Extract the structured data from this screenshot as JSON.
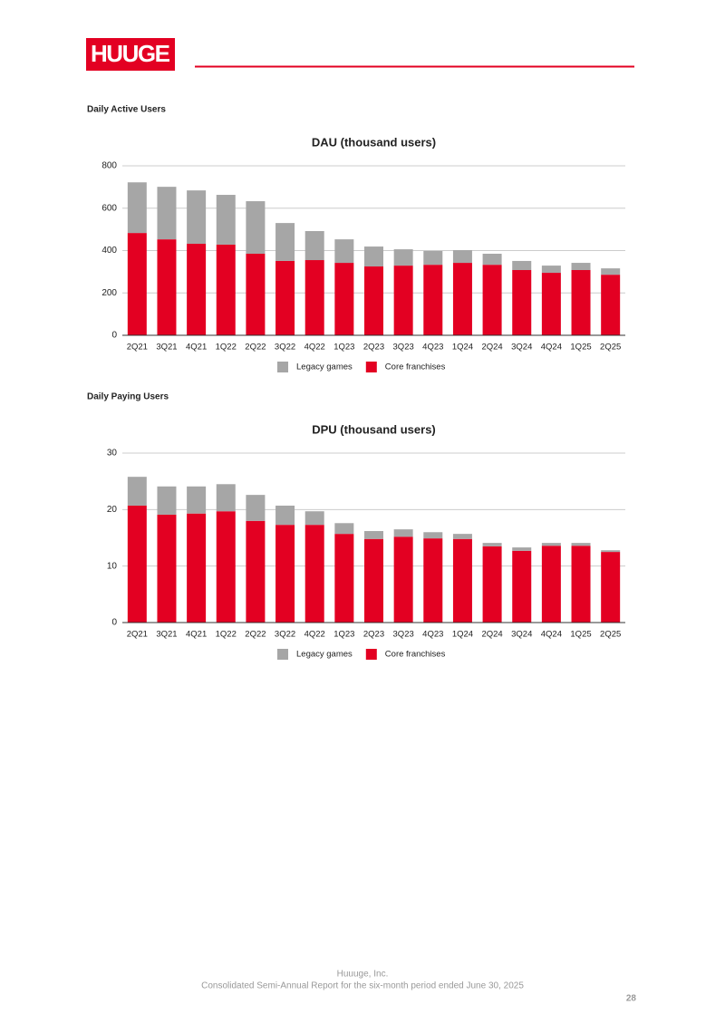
{
  "header": {
    "logo": "HUUGE"
  },
  "sections": [
    {
      "heading": "Daily Active Users"
    },
    {
      "heading": "Daily Paying Users"
    }
  ],
  "chart_data": [
    {
      "type": "stacked-bar",
      "title": "DAU (thousand users)",
      "categories": [
        "2Q21",
        "3Q21",
        "4Q21",
        "1Q22",
        "2Q22",
        "3Q22",
        "4Q22",
        "1Q23",
        "2Q23",
        "3Q23",
        "4Q23",
        "1Q24",
        "2Q24",
        "3Q24",
        "4Q24",
        "1Q25",
        "2Q25"
      ],
      "series": [
        {
          "name": "Legacy games",
          "color": "#a6a6a6",
          "values": [
            239,
            248,
            252,
            235,
            248,
            179,
            137,
            111,
            94,
            77,
            65,
            60,
            52,
            43,
            34,
            34,
            30
          ]
        },
        {
          "name": "Core franchises",
          "color": "#e30022",
          "values": [
            483,
            453,
            432,
            428,
            385,
            351,
            355,
            342,
            325,
            329,
            333,
            342,
            333,
            308,
            295,
            308,
            286
          ]
        }
      ],
      "ylim": [
        0,
        800
      ],
      "yticks": [
        0,
        200,
        400,
        600,
        800
      ],
      "grid": true,
      "legend": "bottom"
    },
    {
      "type": "stacked-bar",
      "title": "DPU (thousand users)",
      "categories": [
        "2Q21",
        "3Q21",
        "4Q21",
        "1Q22",
        "2Q22",
        "3Q22",
        "4Q22",
        "1Q23",
        "2Q23",
        "3Q23",
        "4Q23",
        "1Q24",
        "2Q24",
        "3Q24",
        "4Q24",
        "1Q25",
        "2Q25"
      ],
      "series": [
        {
          "name": "Legacy games",
          "color": "#a6a6a6",
          "values": [
            5.1,
            5.0,
            4.8,
            4.8,
            4.6,
            3.4,
            2.4,
            1.9,
            1.4,
            1.3,
            1.1,
            0.9,
            0.6,
            0.6,
            0.5,
            0.5,
            0.3
          ]
        },
        {
          "name": "Core franchises",
          "color": "#e30022",
          "values": [
            20.7,
            19.1,
            19.3,
            19.7,
            18.0,
            17.3,
            17.3,
            15.7,
            14.8,
            15.2,
            14.9,
            14.8,
            13.5,
            12.7,
            13.6,
            13.6,
            12.5
          ]
        }
      ],
      "ylim": [
        0,
        30
      ],
      "yticks": [
        0,
        10,
        20,
        30
      ],
      "grid": true,
      "legend": "bottom"
    }
  ],
  "footer": {
    "company": "Huuuge, Inc.",
    "report": "Consolidated Semi-Annual Report for the six-month period ended June 30, 2025",
    "page": "28"
  }
}
